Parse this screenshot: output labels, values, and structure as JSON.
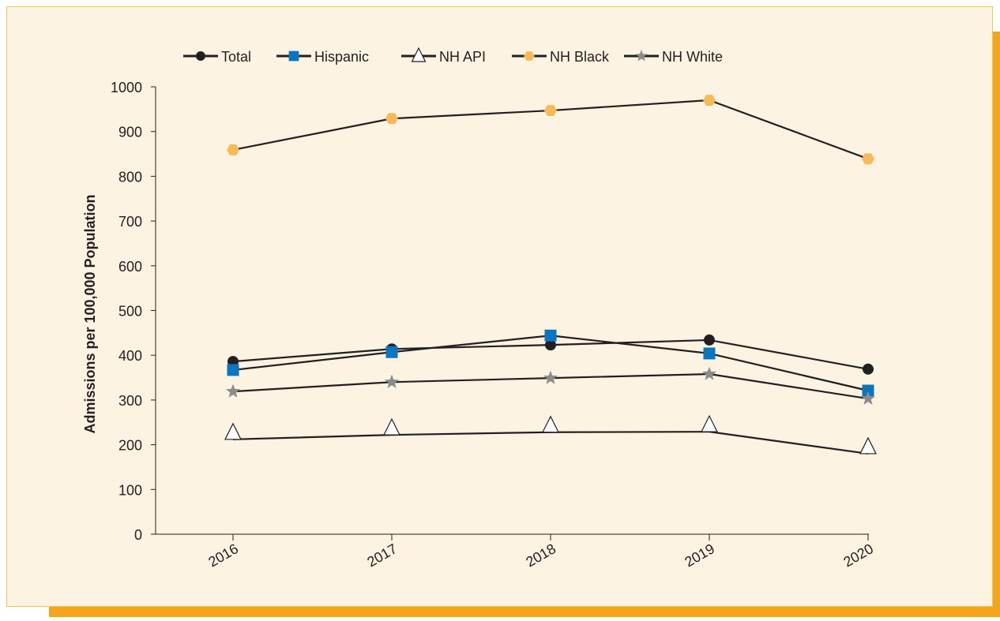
{
  "chart_data": {
    "type": "line",
    "y_label": "Admissions per 100,000 Population",
    "categories": [
      "2016",
      "2017",
      "2018",
      "2019",
      "2020"
    ],
    "series": [
      {
        "name": "Total",
        "color": "#231f20",
        "marker": "circle",
        "values": [
          386,
          414,
          423,
          434,
          369
        ]
      },
      {
        "name": "Hispanic",
        "color": "#0a76c0",
        "marker": "square",
        "values": [
          367,
          407,
          444,
          404,
          321
        ]
      },
      {
        "name": "NH API",
        "color": "#ffffff",
        "marker": "triangle",
        "values": [
          212,
          222,
          228,
          229,
          180
        ]
      },
      {
        "name": "NH Black",
        "color": "#f8b957",
        "marker": "hexagon",
        "values": [
          859,
          929,
          947,
          970,
          839
        ]
      },
      {
        "name": "NH White",
        "color": "#8c8c8c",
        "marker": "star",
        "values": [
          319,
          340,
          349,
          358,
          303
        ]
      }
    ],
    "line_color": "#231f20",
    "ylim": [
      0,
      1000
    ],
    "yticks": [
      0,
      100,
      200,
      300,
      400,
      500,
      600,
      700,
      800,
      900,
      1000
    ],
    "legend": "top"
  }
}
